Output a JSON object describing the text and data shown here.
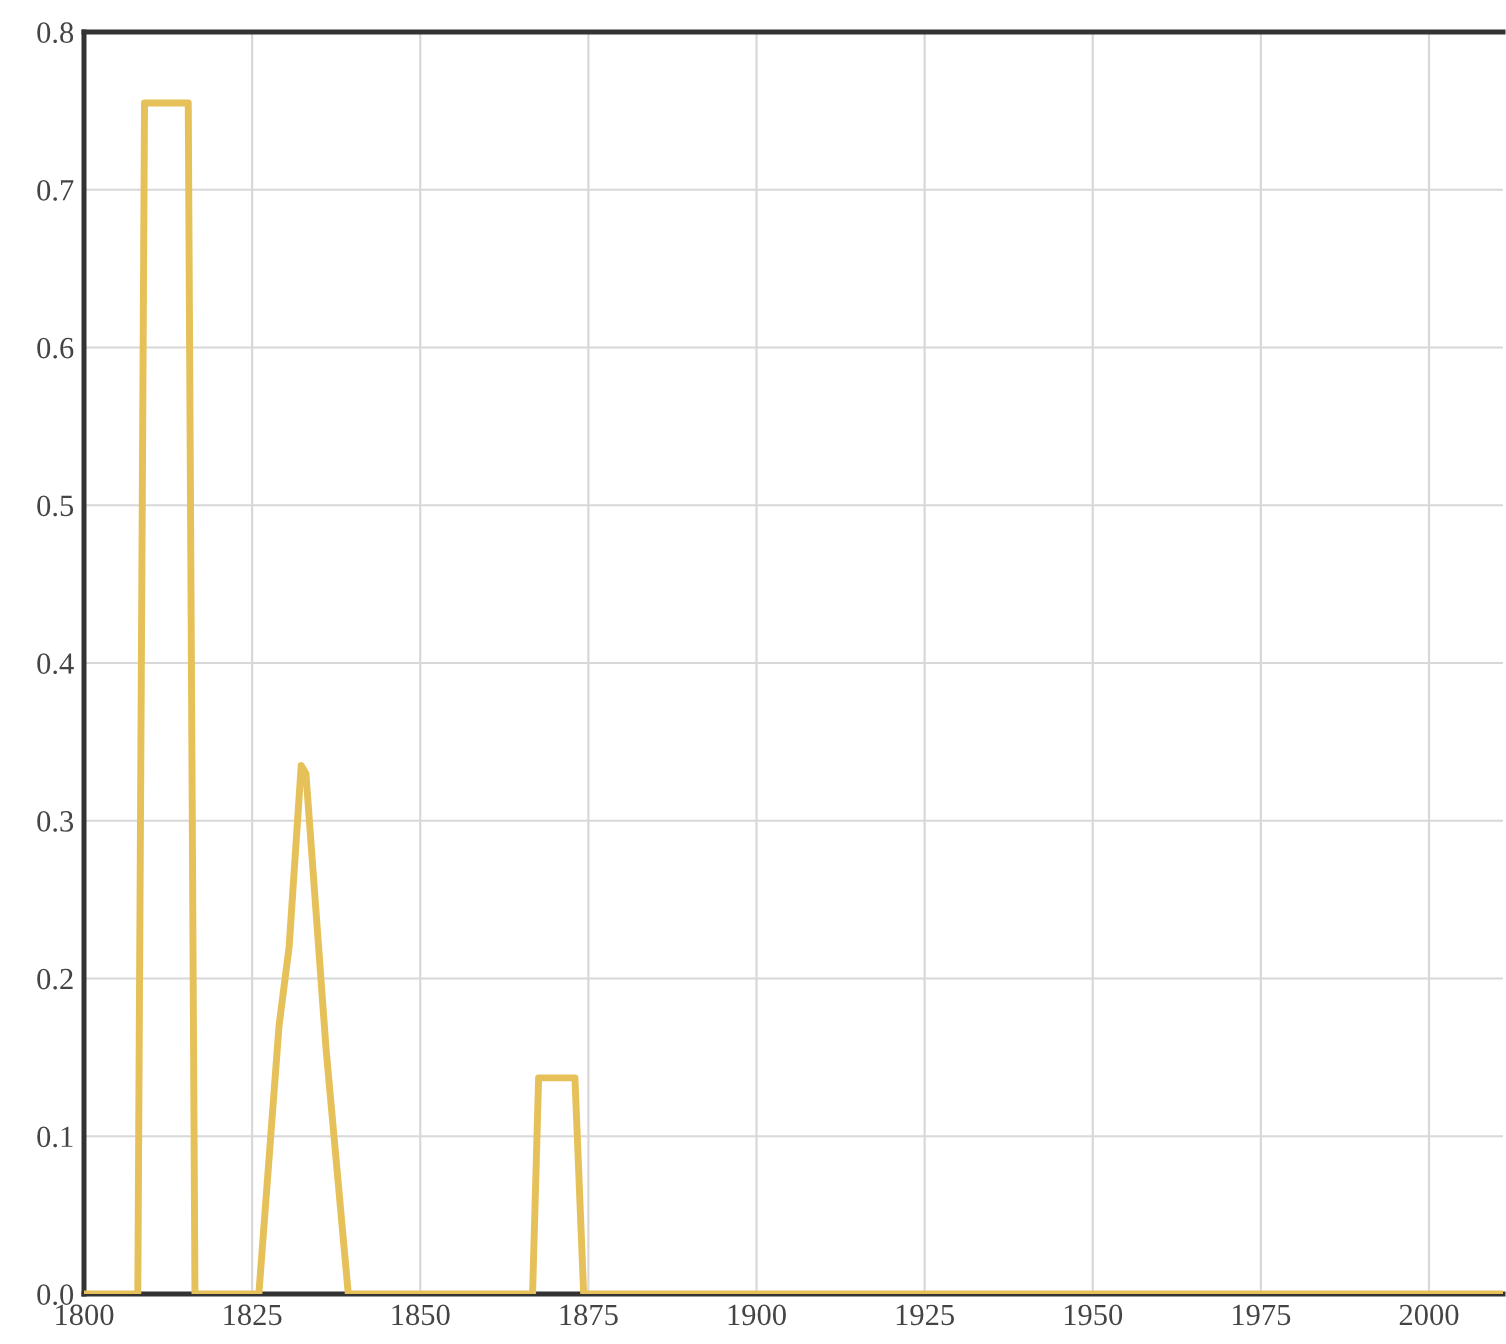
{
  "chart_data": {
    "type": "line",
    "x": [
      1800,
      1808,
      1809,
      1815.5,
      1816.5,
      1826,
      1829,
      1830.5,
      1832.3,
      1833,
      1836,
      1839.3,
      1866.7,
      1867.6,
      1873,
      1874.3,
      2011
    ],
    "series": [
      {
        "color": "#e6c15a",
        "values": [
          0,
          0,
          0.755,
          0.755,
          0,
          0,
          0.17,
          0.22,
          0.335,
          0.33,
          0.155,
          0,
          0,
          0.137,
          0.137,
          0,
          0
        ]
      }
    ],
    "xlim": [
      1800,
      2011
    ],
    "ylim": [
      0,
      0.8
    ],
    "xticks": [
      1800,
      1825,
      1850,
      1875,
      1900,
      1925,
      1950,
      1975,
      2000
    ],
    "yticks": [
      {
        "value": 0,
        "label": "0.0"
      },
      0.1,
      0.2,
      0.3,
      0.4,
      0.5,
      0.6,
      0.7,
      0.8
    ],
    "grid": true,
    "marker": "none",
    "line_style": "solid"
  }
}
